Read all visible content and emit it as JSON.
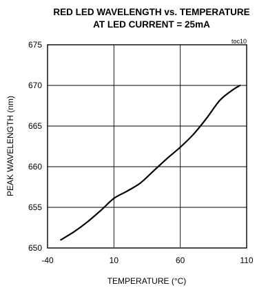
{
  "chart_data": {
    "type": "line",
    "title": "RED LED WAVELENGTH vs. TEMPERATURE",
    "subtitle": "AT LED CURRENT = 25mA",
    "xlabel": "TEMPERATURE (°C)",
    "ylabel": "PEAK WAVELENGTH (nm)",
    "annotation": "toc10",
    "xlim": [
      -40,
      110
    ],
    "ylim": [
      650,
      675
    ],
    "x_ticks": [
      -40,
      10,
      60,
      110
    ],
    "y_ticks": [
      650,
      655,
      660,
      665,
      670,
      675
    ],
    "x_tick_labels": [
      "-40",
      "10",
      "60",
      "110"
    ],
    "y_tick_labels": [
      "650",
      "655",
      "660",
      "665",
      "670",
      "675"
    ],
    "grid": true,
    "series": [
      {
        "x": [
          -30,
          -20,
          -10,
          0,
          10,
          20,
          30,
          40,
          50,
          60,
          70,
          80,
          90,
          100,
          105
        ],
        "y": [
          651.0,
          652.0,
          653.2,
          654.6,
          656.1,
          657.0,
          658.0,
          659.5,
          661.0,
          662.4,
          664.0,
          666.0,
          668.2,
          669.5,
          670.0
        ]
      }
    ]
  }
}
